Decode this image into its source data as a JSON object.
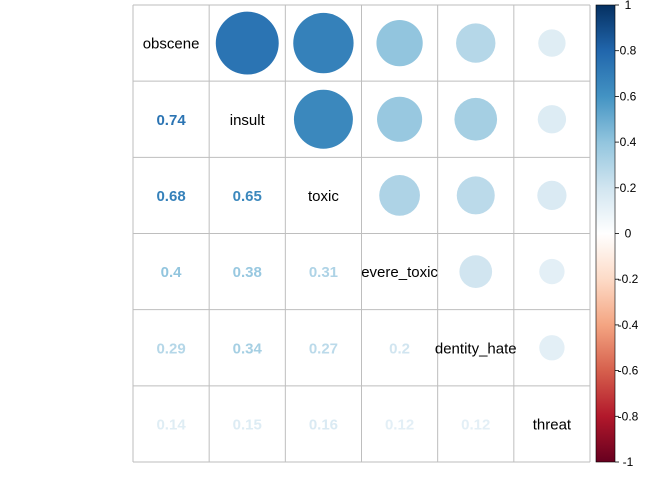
{
  "chart_data": {
    "type": "heatmap",
    "subtype": "correlation-matrix",
    "variables": [
      "obscene",
      "insult",
      "toxic",
      "severe_toxic",
      "identity_hate",
      "threat"
    ],
    "variable_labels_shown": [
      "obscene",
      "insult",
      "toxic",
      "evere_toxic",
      "dentity_hate",
      "threat"
    ],
    "matrix": [
      [
        1.0,
        0.74,
        0.68,
        0.4,
        0.29,
        0.14
      ],
      [
        0.74,
        1.0,
        0.65,
        0.38,
        0.34,
        0.15
      ],
      [
        0.68,
        0.65,
        1.0,
        0.31,
        0.27,
        0.16
      ],
      [
        0.4,
        0.38,
        0.31,
        1.0,
        0.2,
        0.12
      ],
      [
        0.29,
        0.34,
        0.27,
        0.2,
        1.0,
        0.12
      ],
      [
        0.14,
        0.15,
        0.16,
        0.12,
        0.12,
        1.0
      ]
    ],
    "lower_labels": [
      [
        null,
        null,
        null,
        null,
        null,
        null
      ],
      [
        "0.74",
        null,
        null,
        null,
        null,
        null
      ],
      [
        "0.68",
        "0.65",
        null,
        null,
        null,
        null
      ],
      [
        "0.4",
        "0.38",
        "0.31",
        null,
        null,
        null
      ],
      [
        "0.29",
        "0.34",
        "0.27",
        "0.2",
        null,
        null
      ],
      [
        "0.14",
        "0.15",
        "0.16",
        "0.12",
        "0.12",
        null
      ]
    ],
    "upper_display": "circle",
    "lower_display": "number",
    "diagonal_display": "label",
    "title": "",
    "xlabel": "",
    "ylabel": "",
    "colorbar": {
      "range": [
        -1,
        1
      ],
      "ticks": [
        "1",
        "0.8",
        "0.6",
        "0.4",
        "0.2",
        "0",
        "-0.2",
        "-0.4",
        "-0.6",
        "-0.8",
        "-1"
      ],
      "placement": "right"
    },
    "color_scale": [
      "#67001f",
      "#b2182b",
      "#d6604d",
      "#f4a582",
      "#fddbc7",
      "#ffffff",
      "#d1e5f0",
      "#92c5de",
      "#4393c3",
      "#2166ac",
      "#053061"
    ],
    "grid_color": "#bebebe",
    "label_color": "#000000"
  }
}
